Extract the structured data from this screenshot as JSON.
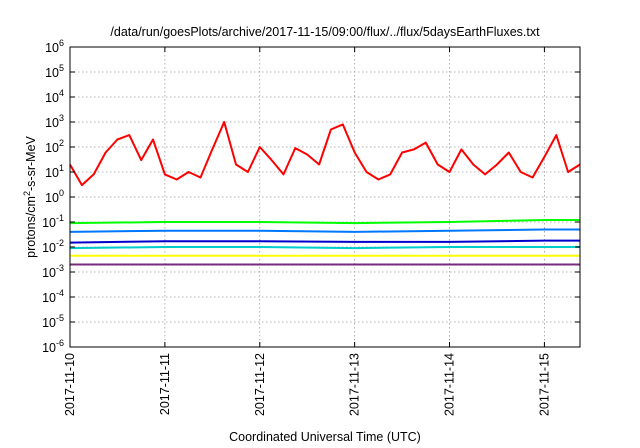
{
  "chart_data": {
    "type": "line",
    "title": "/data/run/goesPlots/archive/2017-11-15/09:00/flux/../flux/5daysEarthFluxes.txt",
    "xlabel": "Coordinated Universal Time (UTC)",
    "ylabel": "protons/cm2-s-sr-MeV",
    "ylabel_parts": [
      "protons/cm",
      "2",
      "-s-sr-MeV"
    ],
    "xlim": [
      "2017-11-10",
      "2017-11-15 09:00"
    ],
    "x_tick_labels": [
      "2017-11-10",
      "2017-11-11",
      "2017-11-12",
      "2017-11-13",
      "2017-11-14",
      "2017-11-15"
    ],
    "ylim": [
      1e-06,
      1000000.0
    ],
    "y_scale": "log",
    "y_tick_exponents": [
      -6,
      -5,
      -4,
      -3,
      -2,
      -1,
      0,
      1,
      2,
      3,
      4,
      5,
      6
    ],
    "y_tick_base": "10",
    "grid": true,
    "legend": "none",
    "series": [
      {
        "color": "#ff0000",
        "x": [
          "2017-11-10 00:00",
          "2017-11-10 03:00",
          "2017-11-10 06:00",
          "2017-11-10 09:00",
          "2017-11-10 12:00",
          "2017-11-10 15:00",
          "2017-11-10 18:00",
          "2017-11-10 21:00",
          "2017-11-11 00:00",
          "2017-11-11 03:00",
          "2017-11-11 06:00",
          "2017-11-11 09:00",
          "2017-11-11 12:00",
          "2017-11-11 15:00",
          "2017-11-11 18:00",
          "2017-11-11 21:00",
          "2017-11-12 00:00",
          "2017-11-12 03:00",
          "2017-11-12 06:00",
          "2017-11-12 09:00",
          "2017-11-12 12:00",
          "2017-11-12 15:00",
          "2017-11-12 18:00",
          "2017-11-12 21:00",
          "2017-11-13 00:00",
          "2017-11-13 03:00",
          "2017-11-13 06:00",
          "2017-11-13 09:00",
          "2017-11-13 12:00",
          "2017-11-13 15:00",
          "2017-11-13 18:00",
          "2017-11-13 21:00",
          "2017-11-14 00:00",
          "2017-11-14 03:00",
          "2017-11-14 06:00",
          "2017-11-14 09:00",
          "2017-11-14 12:00",
          "2017-11-14 15:00",
          "2017-11-14 18:00",
          "2017-11-14 21:00",
          "2017-11-15 00:00",
          "2017-11-15 03:00",
          "2017-11-15 06:00",
          "2017-11-15 09:00"
        ],
        "y": [
          20,
          3,
          8,
          60,
          200,
          300,
          30,
          200,
          8,
          5,
          10,
          6,
          80,
          1000,
          20,
          10,
          100,
          30,
          8,
          90,
          50,
          20,
          500,
          800,
          60,
          10,
          5,
          8,
          60,
          80,
          150,
          20,
          10,
          80,
          20,
          8,
          20,
          60,
          10,
          6,
          40,
          300,
          10,
          20
        ]
      },
      {
        "color": "#00ff00",
        "x": [
          "2017-11-10 00:00",
          "2017-11-11 00:00",
          "2017-11-12 00:00",
          "2017-11-13 00:00",
          "2017-11-14 00:00",
          "2017-11-15 00:00",
          "2017-11-15 09:00"
        ],
        "y": [
          0.09,
          0.1,
          0.1,
          0.09,
          0.1,
          0.12,
          0.12
        ]
      },
      {
        "color": "#0077ff",
        "x": [
          "2017-11-10 00:00",
          "2017-11-11 00:00",
          "2017-11-12 00:00",
          "2017-11-13 00:00",
          "2017-11-14 00:00",
          "2017-11-15 00:00",
          "2017-11-15 09:00"
        ],
        "y": [
          0.04,
          0.045,
          0.045,
          0.04,
          0.045,
          0.05,
          0.05
        ]
      },
      {
        "color": "#0000cc",
        "x": [
          "2017-11-10 00:00",
          "2017-11-11 00:00",
          "2017-11-12 00:00",
          "2017-11-13 00:00",
          "2017-11-14 00:00",
          "2017-11-15 00:00",
          "2017-11-15 09:00"
        ],
        "y": [
          0.015,
          0.017,
          0.017,
          0.016,
          0.016,
          0.018,
          0.018
        ]
      },
      {
        "color": "#00cccc",
        "x": [
          "2017-11-10 00:00",
          "2017-11-11 00:00",
          "2017-11-12 00:00",
          "2017-11-13 00:00",
          "2017-11-14 00:00",
          "2017-11-15 00:00",
          "2017-11-15 09:00"
        ],
        "y": [
          0.009,
          0.01,
          0.01,
          0.009,
          0.01,
          0.01,
          0.01
        ]
      },
      {
        "color": "#ffff00",
        "x": [
          "2017-11-10 00:00",
          "2017-11-11 00:00",
          "2017-11-12 00:00",
          "2017-11-13 00:00",
          "2017-11-14 00:00",
          "2017-11-15 00:00",
          "2017-11-15 09:00"
        ],
        "y": [
          0.0045,
          0.0045,
          0.0045,
          0.0045,
          0.0045,
          0.0045,
          0.0045
        ]
      },
      {
        "color": "#7a2a7a",
        "x": [
          "2017-11-10 00:00",
          "2017-11-11 00:00",
          "2017-11-12 00:00",
          "2017-11-13 00:00",
          "2017-11-14 00:00",
          "2017-11-15 00:00",
          "2017-11-15 09:00"
        ],
        "y": [
          0.002,
          0.002,
          0.002,
          0.002,
          0.002,
          0.002,
          0.002
        ]
      }
    ]
  }
}
